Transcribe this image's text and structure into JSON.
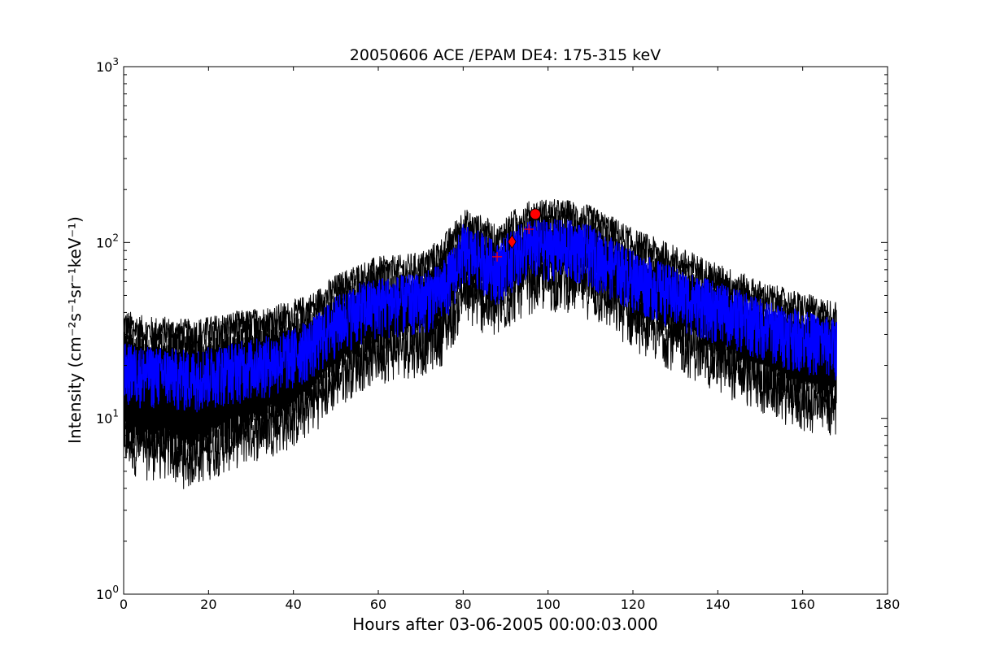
{
  "chart_data": {
    "type": "line",
    "title": "20050606 ACE /EPAM DE4: 175-315 keV",
    "xlabel": "Hours after 03-06-2005 00:00:03.000",
    "ylabel": "Intensity (cm⁻²s⁻¹sr⁻¹keV⁻¹)",
    "xlim": [
      0,
      180
    ],
    "ylim": [
      1,
      1000
    ],
    "yscale": "log",
    "grid": false,
    "x_ticks": [
      0,
      20,
      40,
      60,
      80,
      100,
      120,
      140,
      160,
      180
    ],
    "y_ticks": [
      {
        "value": 1,
        "label_base": "10",
        "label_exp": "0"
      },
      {
        "value": 10,
        "label_base": "10",
        "label_exp": "1"
      },
      {
        "value": 100,
        "label_base": "10",
        "label_exp": "2"
      },
      {
        "value": 1000,
        "label_base": "10",
        "label_exp": "3"
      }
    ],
    "colors": {
      "intensity": "#0000ff",
      "error_band": "#000000",
      "markers": "#ff0000"
    },
    "series": [
      {
        "x": [
          0,
          5,
          10,
          15,
          20,
          25,
          30,
          35,
          40,
          45,
          50,
          55,
          60,
          65,
          70,
          75,
          78,
          80,
          82,
          85,
          88,
          90,
          92,
          95,
          98,
          100,
          105,
          110,
          115,
          120,
          125,
          130,
          135,
          140,
          145,
          150,
          155,
          160,
          165,
          168
        ],
        "center": [
          19,
          18,
          18,
          17,
          18,
          19,
          20,
          21,
          23,
          27,
          35,
          41,
          45,
          46,
          47,
          54,
          70,
          90,
          85,
          80,
          70,
          78,
          85,
          95,
          95,
          96,
          95,
          88,
          75,
          64,
          57,
          51,
          46,
          42,
          38,
          34,
          31,
          29,
          27,
          26
        ],
        "upper": [
          33,
          30,
          30,
          29,
          30,
          32,
          33,
          35,
          37,
          42,
          52,
          60,
          66,
          67,
          70,
          85,
          105,
          125,
          118,
          112,
          98,
          112,
          122,
          135,
          140,
          140,
          138,
          128,
          112,
          95,
          85,
          76,
          68,
          60,
          54,
          48,
          44,
          41,
          38,
          37
        ],
        "lower": [
          9,
          8,
          8,
          7,
          8,
          9,
          10,
          11,
          12,
          15,
          20,
          25,
          28,
          30,
          31,
          36,
          48,
          62,
          58,
          54,
          48,
          55,
          62,
          70,
          72,
          72,
          72,
          65,
          54,
          44,
          38,
          33,
          29,
          25,
          22,
          19,
          17,
          15,
          14,
          14
        ]
      }
    ],
    "markers": [
      {
        "shape": "plus",
        "x": 88,
        "y": 83
      },
      {
        "shape": "diamond",
        "x": 91.5,
        "y": 101
      },
      {
        "shape": "plus",
        "x": 95.5,
        "y": 119
      },
      {
        "shape": "circle",
        "x": 97,
        "y": 145
      }
    ]
  }
}
